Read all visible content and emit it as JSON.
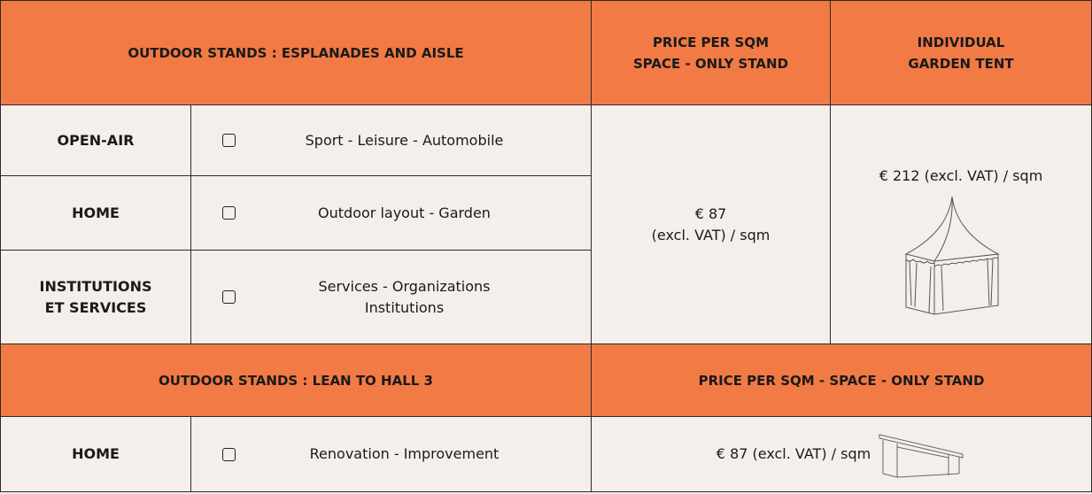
{
  "table": {
    "header": {
      "title": "OUTDOOR STANDS : ESPLANADES AND AISLE",
      "price": [
        "PRICE PER SQM",
        "SPACE - ONLY STAND"
      ],
      "tent": [
        "INDIVIDUAL",
        "GARDEN TENT"
      ]
    },
    "rows": [
      {
        "category": [
          "OPEN-AIR"
        ],
        "activity": [
          "Sport - Leisure - Automobile"
        ]
      },
      {
        "category": [
          "HOME"
        ],
        "activity": [
          "Outdoor layout - Garden"
        ]
      },
      {
        "category": [
          "INSTITUTIONS",
          "ET SERVICES"
        ],
        "activity": [
          "Services - Organizations",
          "Institutions"
        ]
      }
    ],
    "price": [
      "€ 87",
      "(excl. VAT) / sqm"
    ],
    "tent_price": "€ 212 (excl. VAT) / sqm"
  },
  "table2": {
    "header": {
      "title": "OUTDOOR STANDS : LEAN TO HALL 3",
      "price": "PRICE PER SQM - SPACE - ONLY STAND"
    },
    "rows": [
      {
        "category": "HOME",
        "activity": "Renovation - Improvement",
        "price": "€ 87 (excl. VAT) / sqm"
      }
    ]
  }
}
